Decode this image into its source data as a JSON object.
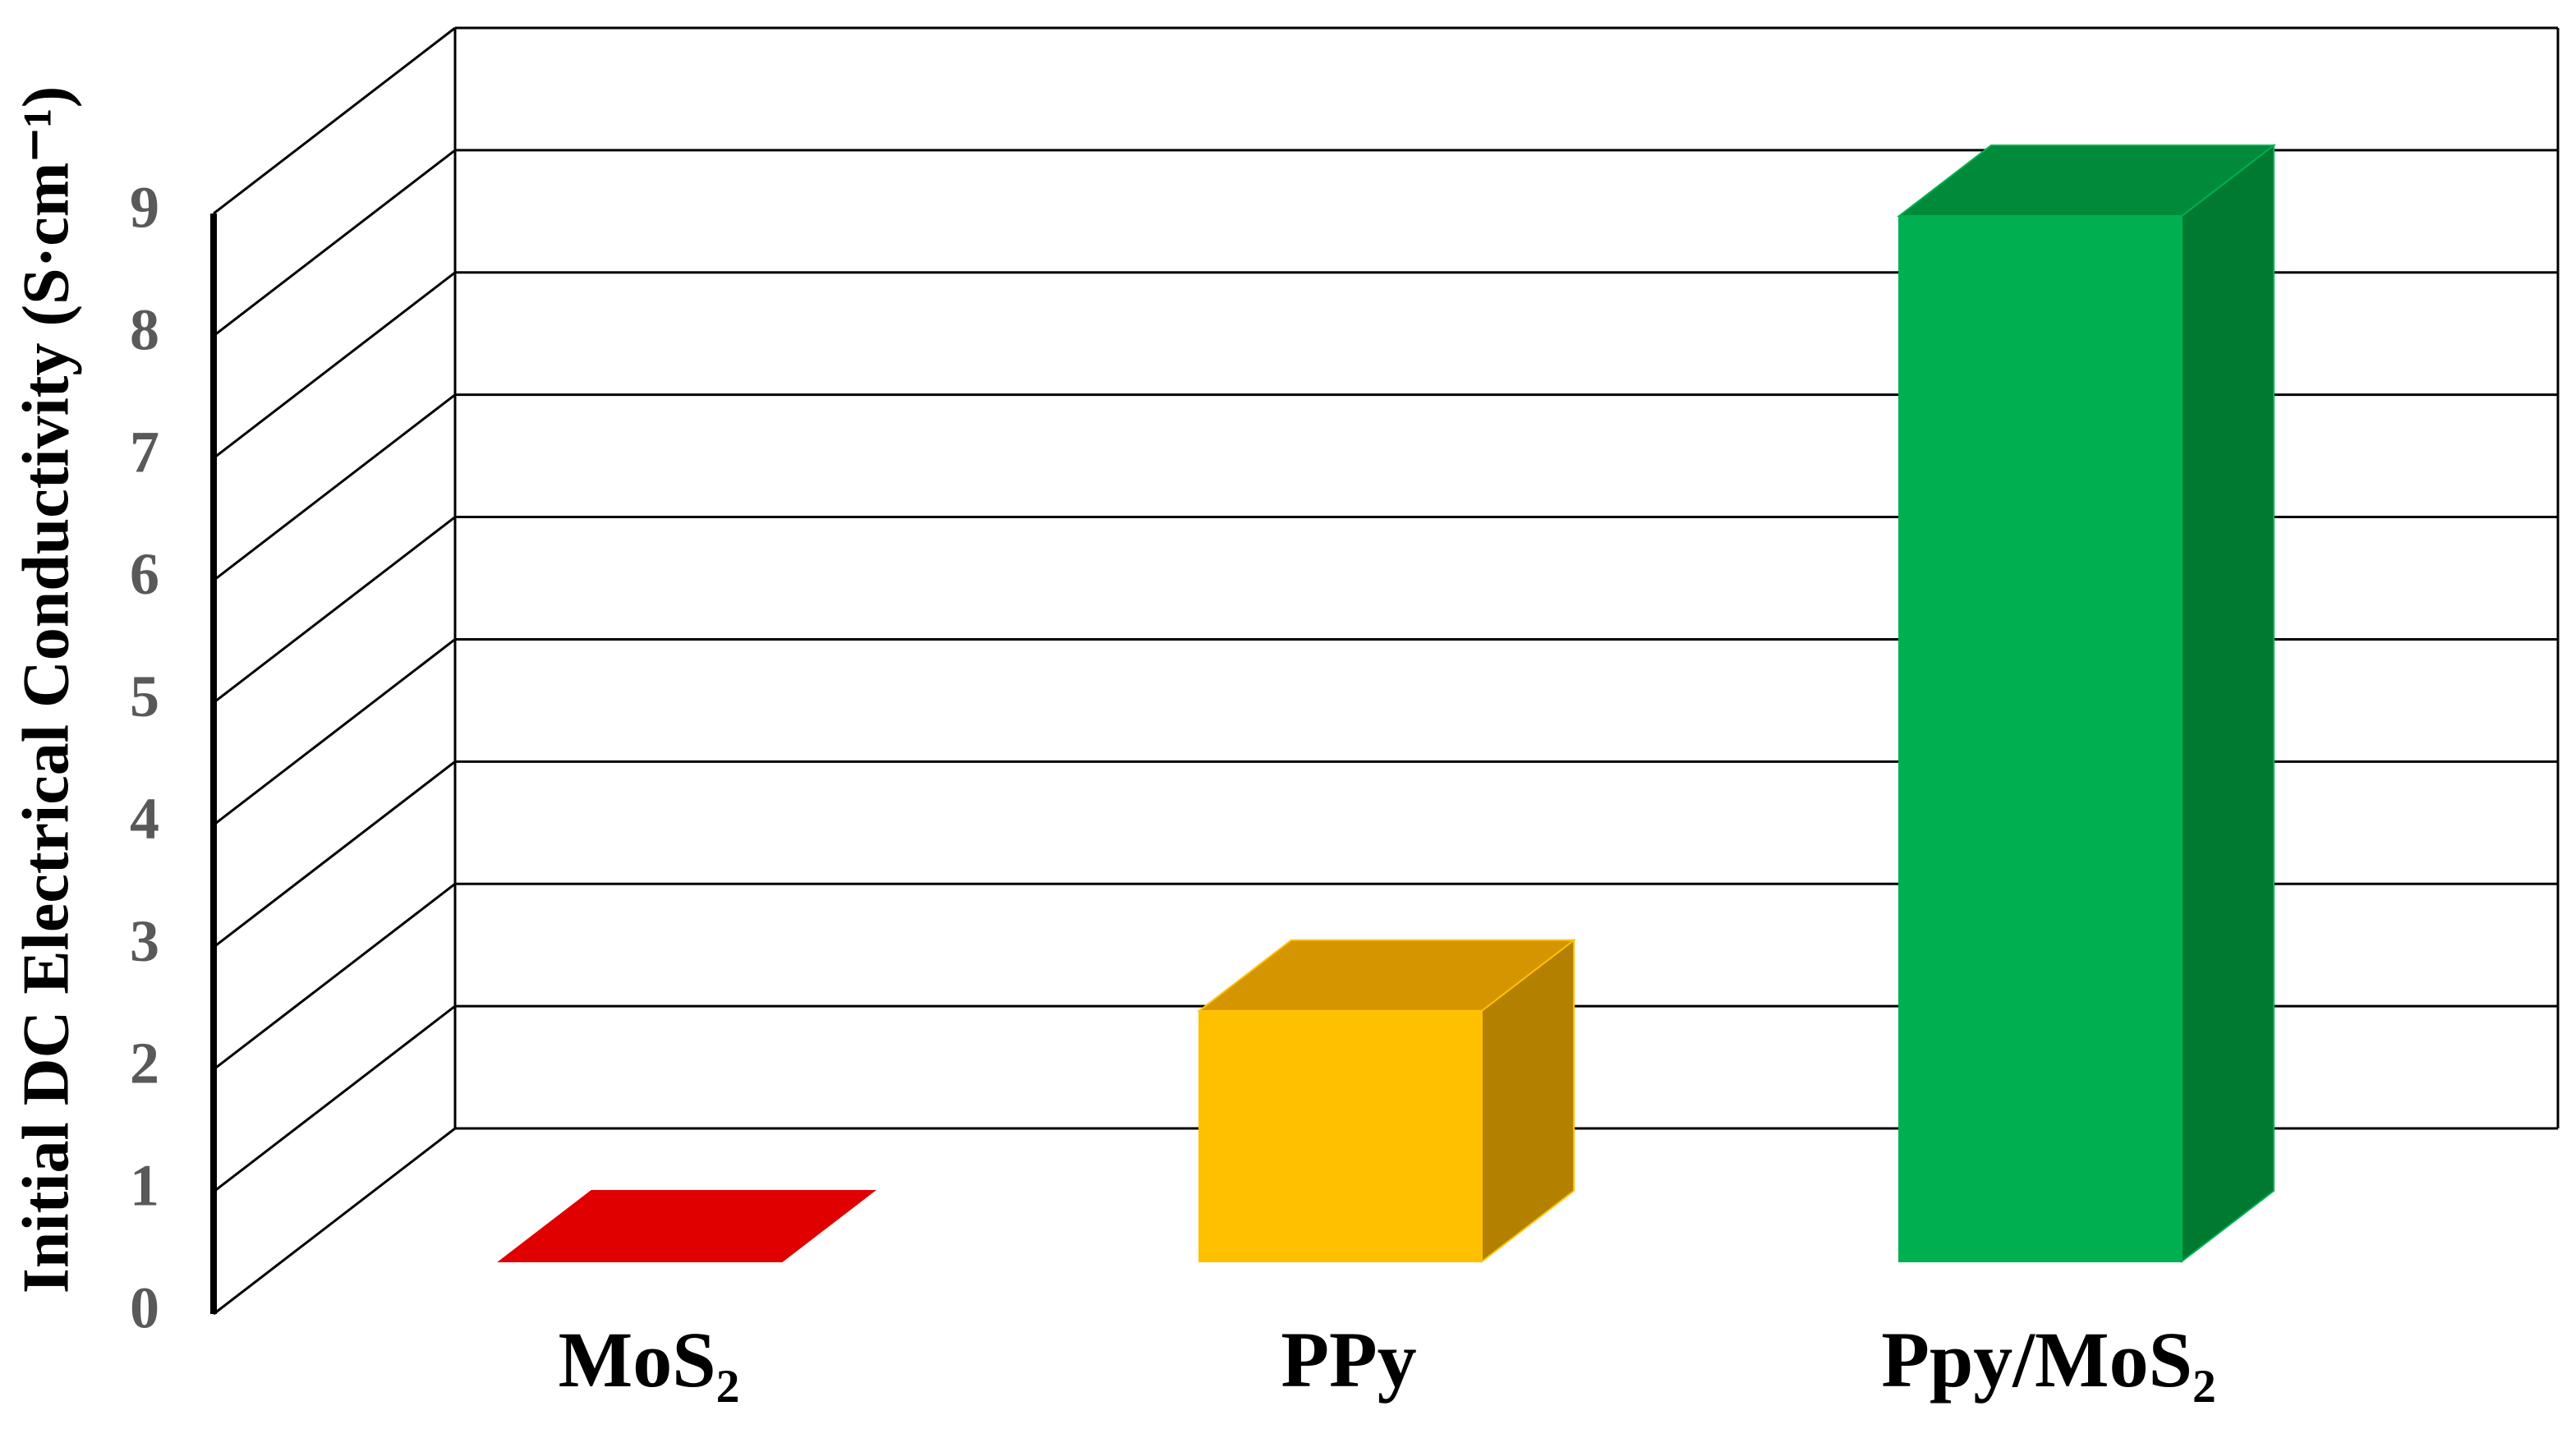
{
  "chart_data": {
    "type": "bar3d",
    "y_label": "Initial DC Electrical Conductivity (S·cm⁻¹)",
    "categories": [
      "MoS₂",
      "PPy",
      "Ppy/MoS₂"
    ],
    "values": [
      0,
      2.05,
      8.55
    ],
    "colors": [
      "#e00000",
      "#ffc000",
      "#00b050"
    ],
    "top_colors": [
      "#e00000",
      "#d49500",
      "#008a3a"
    ],
    "side_colors": [
      "#b00000",
      "#b38000",
      "#007a30"
    ],
    "ylim": [
      0,
      9
    ],
    "yticks": [
      0,
      1,
      2,
      3,
      4,
      5,
      6,
      7,
      8,
      9
    ],
    "grid": true
  }
}
